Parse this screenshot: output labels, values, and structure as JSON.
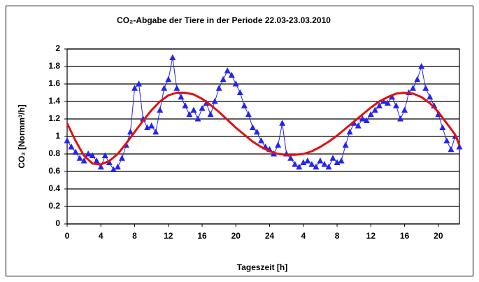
{
  "chart_data": {
    "type": "scatter-line",
    "title": "CO₂-Abgabe der Tiere in der Periode 22.03-23.03.2010",
    "y_label": "CO₂ [Normm³/h]",
    "x_label": "Tageszeit [h]",
    "xlim": [
      0,
      46.5
    ],
    "xticks": [
      0,
      4,
      8,
      12,
      16,
      20,
      24,
      {
        "value": 28,
        "label": "4"
      },
      {
        "value": 32,
        "label": "8"
      },
      {
        "value": 36,
        "label": "12"
      },
      {
        "value": 40,
        "label": "16"
      },
      {
        "value": 44,
        "label": "20"
      }
    ],
    "ylim": [
      0,
      2
    ],
    "yticks": [
      0,
      0.2,
      0.4,
      0.6,
      0.8,
      1,
      1.2,
      1.4,
      1.6,
      1.8,
      2
    ],
    "grid": true,
    "series": [
      {
        "type": "scatter",
        "color": "#2424f0",
        "marker": "triangle",
        "x": [
          0,
          0.5,
          1,
          1.5,
          2,
          2.5,
          3,
          3.5,
          4,
          4.5,
          5,
          5.5,
          6,
          6.5,
          7,
          7.5,
          8,
          8.5,
          9,
          9.5,
          10,
          10.5,
          11,
          11.5,
          12,
          12.5,
          13,
          13.5,
          14,
          14.5,
          15,
          15.5,
          16,
          16.5,
          17,
          17.5,
          18,
          18.5,
          19,
          19.5,
          20,
          20.5,
          21,
          21.5,
          22,
          22.5,
          23,
          23.5,
          24,
          24.5,
          25,
          25.5,
          26,
          26.5,
          27,
          27.5,
          28,
          28.5,
          29,
          29.5,
          30,
          30.5,
          31,
          31.5,
          32,
          32.5,
          33,
          33.5,
          34,
          34.5,
          35,
          35.5,
          36,
          36.5,
          37,
          37.5,
          38,
          38.5,
          39,
          39.5,
          40,
          40.5,
          41,
          41.5,
          42,
          42.5,
          43,
          43.5,
          44,
          44.5,
          45,
          45.5,
          46,
          46.5
        ],
        "values": [
          0.95,
          0.88,
          0.82,
          0.75,
          0.72,
          0.8,
          0.78,
          0.72,
          0.65,
          0.78,
          0.7,
          0.62,
          0.65,
          0.75,
          0.9,
          1.05,
          1.55,
          1.6,
          1.2,
          1.1,
          1.12,
          1.05,
          1.3,
          1.55,
          1.65,
          1.9,
          1.55,
          1.45,
          1.35,
          1.25,
          1.3,
          1.2,
          1.32,
          1.38,
          1.25,
          1.4,
          1.55,
          1.65,
          1.75,
          1.7,
          1.6,
          1.5,
          1.35,
          1.25,
          1.1,
          1.05,
          0.95,
          0.88,
          0.85,
          0.8,
          0.9,
          1.15,
          0.8,
          0.75,
          0.68,
          0.65,
          0.7,
          0.72,
          0.68,
          0.65,
          0.72,
          0.68,
          0.65,
          0.75,
          0.7,
          0.72,
          0.9,
          1.05,
          1.15,
          1.12,
          1.2,
          1.18,
          1.25,
          1.3,
          1.35,
          1.4,
          1.38,
          1.45,
          1.35,
          1.2,
          1.3,
          1.5,
          1.55,
          1.65,
          1.8,
          1.55,
          1.45,
          1.35,
          1.25,
          1.1,
          0.95,
          0.85,
          1.0,
          0.88
        ]
      },
      {
        "type": "line",
        "color": "#e01010",
        "x": [
          0,
          1,
          2,
          3,
          4,
          5,
          6,
          7,
          8,
          9,
          10,
          11,
          12,
          13,
          14,
          15,
          16,
          17,
          18,
          19,
          20,
          21,
          22,
          23,
          24,
          25,
          26,
          27,
          28,
          29,
          30,
          31,
          32,
          33,
          34,
          35,
          36,
          37,
          38,
          39,
          40,
          41,
          42,
          43,
          44,
          45,
          46,
          46.5
        ],
        "values": [
          1.15,
          0.95,
          0.78,
          0.69,
          0.68,
          0.72,
          0.8,
          0.92,
          1.05,
          1.18,
          1.3,
          1.4,
          1.47,
          1.5,
          1.5,
          1.48,
          1.43,
          1.36,
          1.28,
          1.19,
          1.1,
          1.02,
          0.94,
          0.88,
          0.83,
          0.8,
          0.79,
          0.79,
          0.8,
          0.83,
          0.88,
          0.94,
          1.01,
          1.09,
          1.17,
          1.25,
          1.33,
          1.4,
          1.45,
          1.49,
          1.5,
          1.49,
          1.45,
          1.38,
          1.28,
          1.15,
          1.02,
          0.9
        ]
      }
    ]
  }
}
